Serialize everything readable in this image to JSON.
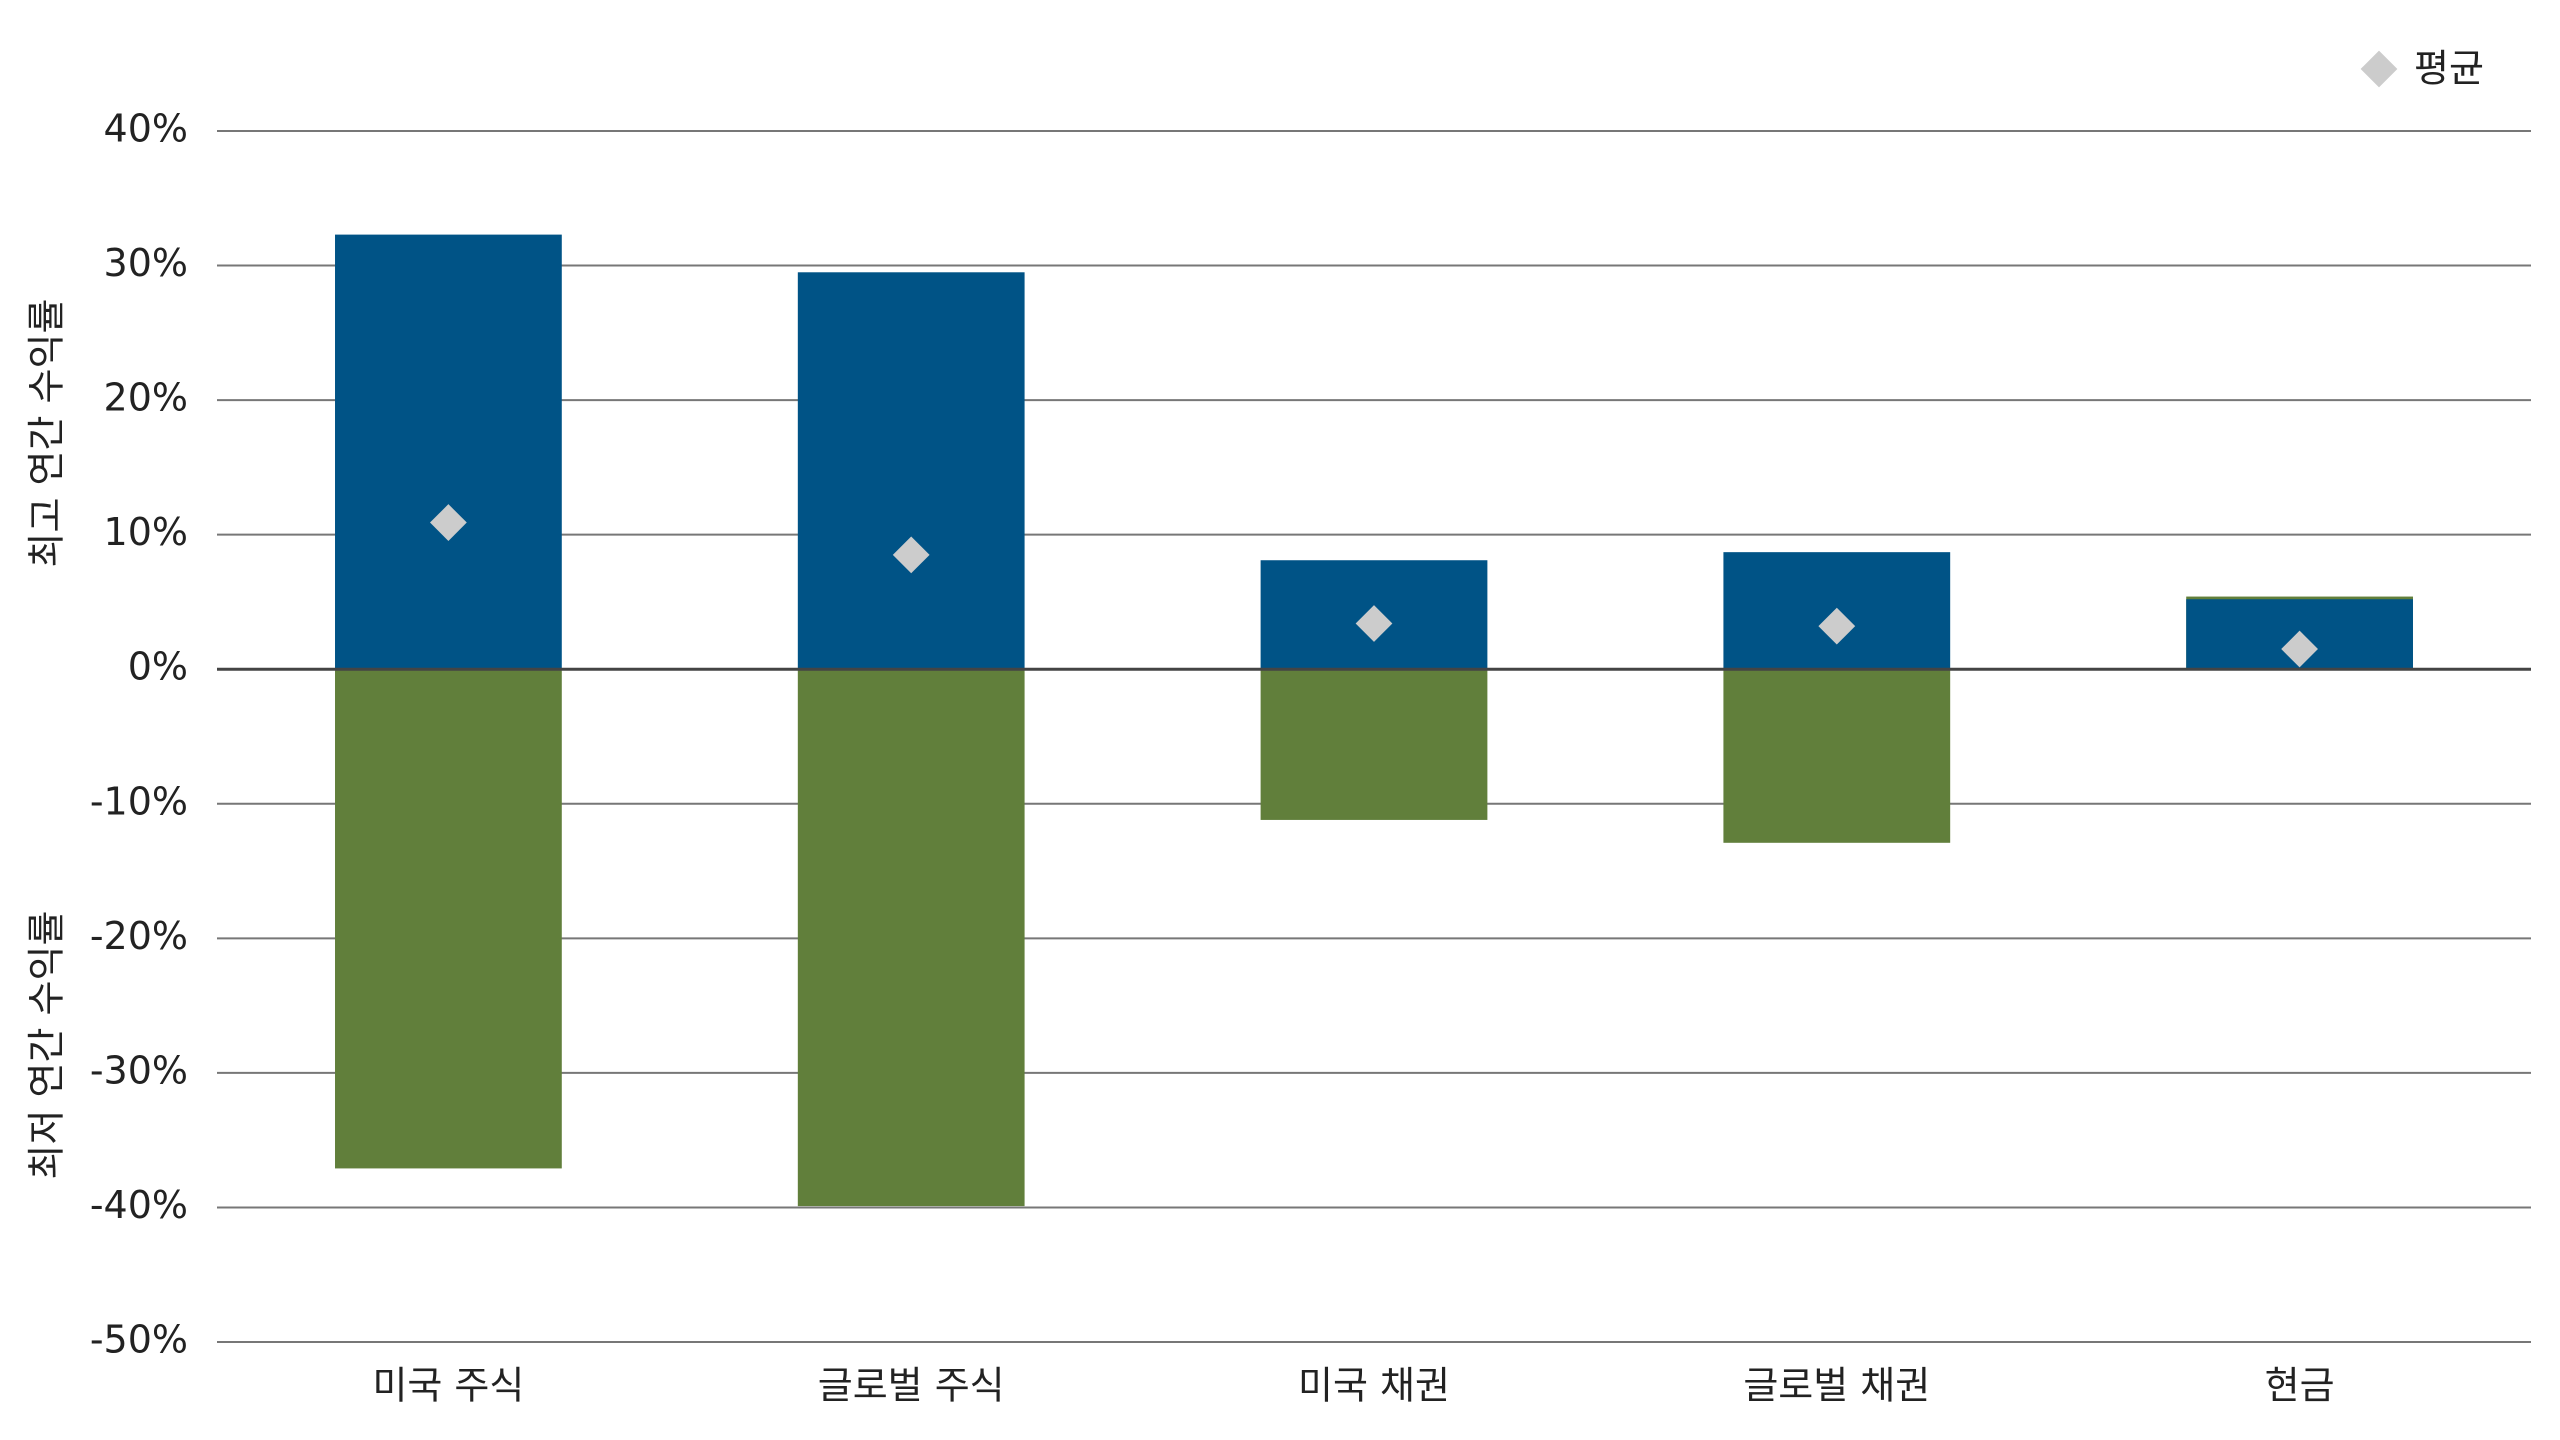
{
  "chart_data": {
    "type": "bar",
    "categories": [
      "미국 주식",
      "글로벌 주식",
      "미국 채권",
      "글로벌 채권",
      "현금"
    ],
    "series": [
      {
        "name": "최저 연간 수익률",
        "color": "#617f3b",
        "values": [
          -37.1,
          -39.9,
          -11.2,
          -12.9,
          5.4
        ]
      },
      {
        "name": "최고 연간 수익률",
        "color": "#005386",
        "values": [
          32.3,
          29.5,
          8.1,
          8.7,
          5.2
        ]
      },
      {
        "name": "평균",
        "color": "#cccccc",
        "marker": "diamond",
        "values": [
          10.9,
          8.5,
          3.4,
          3.2,
          1.5
        ]
      }
    ],
    "ylim": [
      -50,
      40
    ],
    "yticks": [
      {
        "value": -50,
        "label": "-50%"
      },
      {
        "value": -40,
        "label": "-40%"
      },
      {
        "value": -30,
        "label": "-30%"
      },
      {
        "value": -20,
        "label": "-20%"
      },
      {
        "value": -10,
        "label": "-10%"
      },
      {
        "value": 0,
        "label": "0%"
      },
      {
        "value": 10,
        "label": "10%"
      },
      {
        "value": 20,
        "label": "20%"
      },
      {
        "value": 30,
        "label": "30%"
      },
      {
        "value": 40,
        "label": "40%"
      }
    ],
    "grid": true,
    "legend": "upper right"
  }
}
